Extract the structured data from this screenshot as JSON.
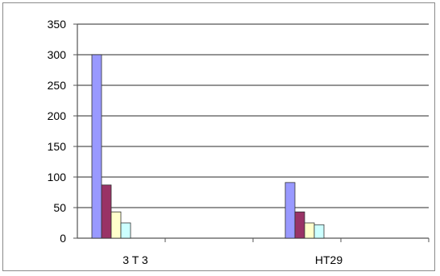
{
  "chart_data": {
    "type": "bar",
    "categories": [
      "3 T 3",
      "HT29"
    ],
    "series": [
      {
        "values": [
          300,
          91
        ],
        "color": "#9999ff"
      },
      {
        "values": [
          87,
          43
        ],
        "color": "#993366"
      },
      {
        "values": [
          43,
          25
        ],
        "color": "#ffffcc"
      },
      {
        "values": [
          25,
          22
        ],
        "color": "#ccffff"
      }
    ],
    "y_ticks": [
      "0",
      "50",
      "100",
      "150",
      "200",
      "250",
      "300",
      "350"
    ],
    "ylim": [
      0,
      350
    ],
    "grid": true,
    "legend": "none",
    "title": "",
    "xlabel": "",
    "ylabel": ""
  }
}
